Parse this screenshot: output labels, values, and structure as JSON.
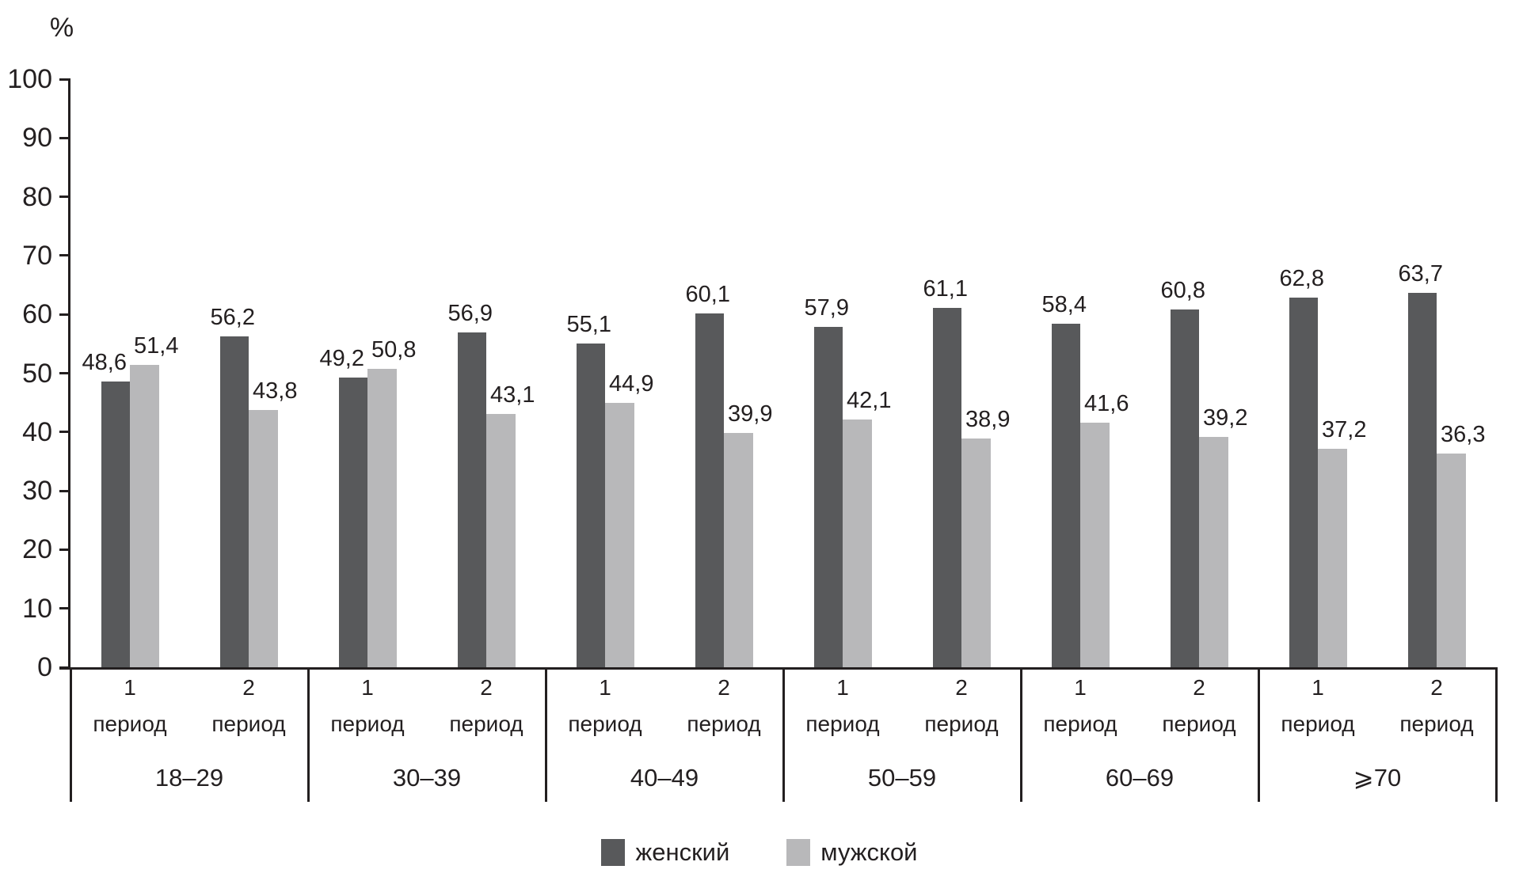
{
  "chart_data": {
    "type": "bar",
    "title": "",
    "ylabel": "%",
    "xlabel": "",
    "ylim": [
      0,
      100
    ],
    "y_ticks": [
      "100",
      "90",
      "80",
      "70",
      "60",
      "50",
      "40",
      "30",
      "20",
      "10",
      "0"
    ],
    "grid": false,
    "legend_position": "bottom-center",
    "decimal_separator": ",",
    "bar_colors": {
      "женский": "#58595b",
      "мужской": "#b8b8ba"
    },
    "x_axis": {
      "period_labels_per_group": [
        "1 период",
        "2 период"
      ],
      "age_groups": [
        "18–29",
        "30–39",
        "40–49",
        "50–59",
        "60–69",
        "⩾70"
      ]
    },
    "series": [
      {
        "name": "женский",
        "values": [
          48.6,
          56.2,
          49.2,
          56.9,
          55.1,
          60.1,
          57.9,
          61.1,
          58.4,
          60.8,
          62.8,
          63.7
        ]
      },
      {
        "name": "мужской",
        "values": [
          51.4,
          43.8,
          50.8,
          43.1,
          44.9,
          39.9,
          42.1,
          38.9,
          41.6,
          39.2,
          37.2,
          36.3
        ]
      }
    ],
    "groups": [
      {
        "age_label": "18–29",
        "pairs": [
          {
            "period_num": "1",
            "period_word": "период",
            "female": {
              "value": 48.6,
              "label": "48,6"
            },
            "male": {
              "value": 51.4,
              "label": "51,4"
            }
          },
          {
            "period_num": "2",
            "period_word": "период",
            "female": {
              "value": 56.2,
              "label": "56,2"
            },
            "male": {
              "value": 43.8,
              "label": "43,8"
            }
          }
        ]
      },
      {
        "age_label": "30–39",
        "pairs": [
          {
            "period_num": "1",
            "period_word": "период",
            "female": {
              "value": 49.2,
              "label": "49,2"
            },
            "male": {
              "value": 50.8,
              "label": "50,8"
            }
          },
          {
            "period_num": "2",
            "period_word": "период",
            "female": {
              "value": 56.9,
              "label": "56,9"
            },
            "male": {
              "value": 43.1,
              "label": "43,1"
            }
          }
        ]
      },
      {
        "age_label": "40–49",
        "pairs": [
          {
            "period_num": "1",
            "period_word": "период",
            "female": {
              "value": 55.1,
              "label": "55,1"
            },
            "male": {
              "value": 44.9,
              "label": "44,9"
            }
          },
          {
            "period_num": "2",
            "period_word": "период",
            "female": {
              "value": 60.1,
              "label": "60,1"
            },
            "male": {
              "value": 39.9,
              "label": "39,9"
            }
          }
        ]
      },
      {
        "age_label": "50–59",
        "pairs": [
          {
            "period_num": "1",
            "period_word": "период",
            "female": {
              "value": 57.9,
              "label": "57,9"
            },
            "male": {
              "value": 42.1,
              "label": "42,1"
            }
          },
          {
            "period_num": "2",
            "period_word": "период",
            "female": {
              "value": 61.1,
              "label": "61,1"
            },
            "male": {
              "value": 38.9,
              "label": "38,9"
            }
          }
        ]
      },
      {
        "age_label": "60–69",
        "pairs": [
          {
            "period_num": "1",
            "period_word": "период",
            "female": {
              "value": 58.4,
              "label": "58,4"
            },
            "male": {
              "value": 41.6,
              "label": "41,6"
            }
          },
          {
            "period_num": "2",
            "period_word": "период",
            "female": {
              "value": 60.8,
              "label": "60,8"
            },
            "male": {
              "value": 39.2,
              "label": "39,2"
            }
          }
        ]
      },
      {
        "age_label": "⩾70",
        "pairs": [
          {
            "period_num": "1",
            "period_word": "период",
            "female": {
              "value": 62.8,
              "label": "62,8"
            },
            "male": {
              "value": 37.2,
              "label": "37,2"
            }
          },
          {
            "period_num": "2",
            "period_word": "период",
            "female": {
              "value": 63.7,
              "label": "63,7"
            },
            "male": {
              "value": 36.3,
              "label": "36,3"
            }
          }
        ]
      }
    ]
  },
  "legend": [
    {
      "label": "женский",
      "color": "#58595b"
    },
    {
      "label": "мужской",
      "color": "#b8b8ba"
    }
  ]
}
